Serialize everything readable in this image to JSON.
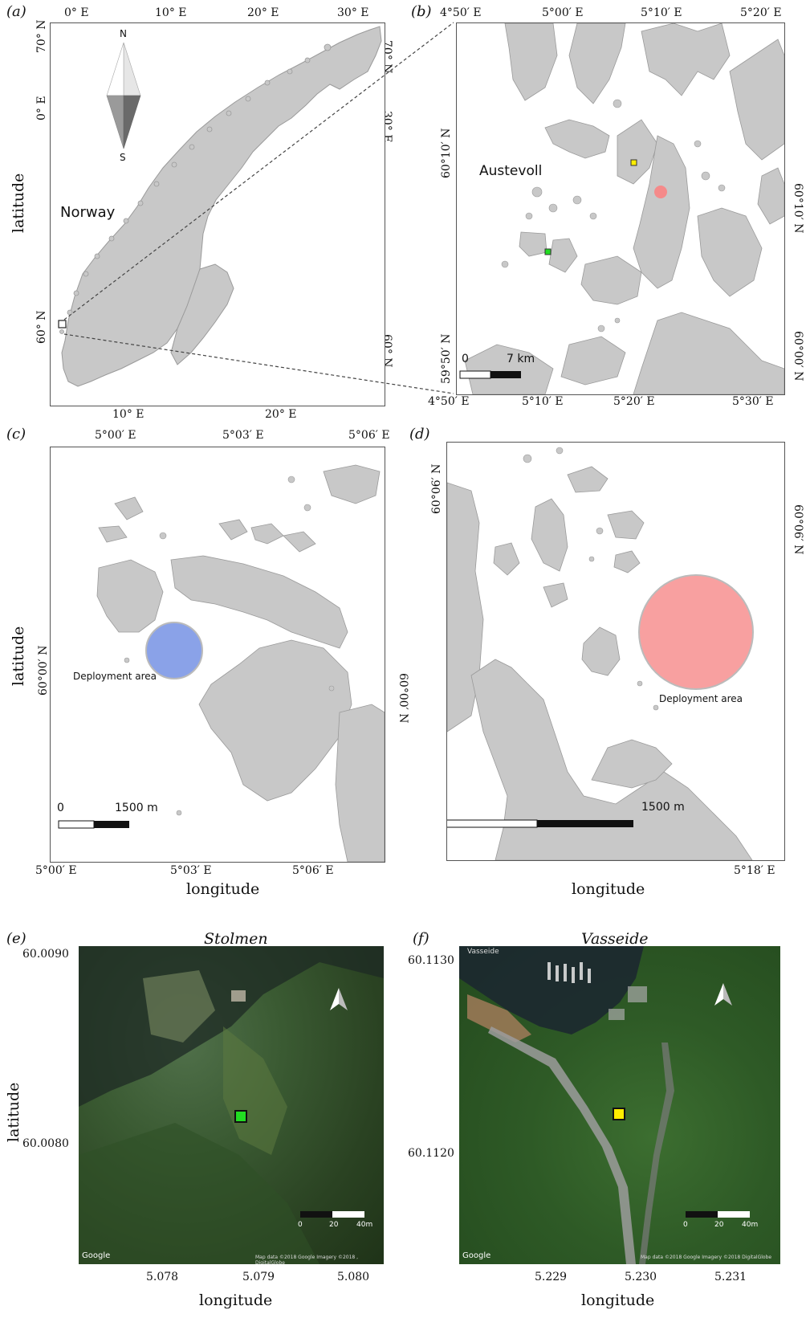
{
  "panels": {
    "a": {
      "letter": "(a)",
      "top_ticks": [
        "0° E",
        "10° E",
        "20° E",
        "30° E"
      ],
      "bottom_ticks": [
        "10° E",
        "20° E"
      ],
      "left_ticks": [
        "70° N",
        "0° E",
        "60° N"
      ],
      "right_ticks": [
        "70° N",
        "30° E",
        "60° N"
      ],
      "ylabel": "latitude",
      "country_label": "Norway",
      "compass_n": "N",
      "compass_s": "S"
    },
    "b": {
      "letter": "(b)",
      "top_ticks": [
        "4°50′ E",
        "5°00′ E",
        "5°10′ E",
        "5°20′ E"
      ],
      "bottom_ticks": [
        "4°50′ E",
        "5°10′ E",
        "5°20′ E",
        "5°30′ E"
      ],
      "left_ticks": [
        "60°10′ N",
        "59°50′ N"
      ],
      "right_ticks": [
        "60°10′ N",
        "60°00′ N"
      ],
      "place_label": "Austevoll",
      "scale_start": "0",
      "scale_end": "7 km"
    },
    "c": {
      "letter": "(c)",
      "top_ticks": [
        "5°00′ E",
        "5°03′ E",
        "5°06′ E"
      ],
      "bottom_ticks": [
        "5°00′ E",
        "5°03′ E",
        "5°06′ E"
      ],
      "left_ticks": [
        "60°00′ N"
      ],
      "right_ticks": [
        "60°00′ N"
      ],
      "ylabel": "latitude",
      "xlabel": "longitude",
      "area_label": "Deployment area",
      "scale_start": "0",
      "scale_end": "1500 m"
    },
    "d": {
      "letter": "(d)",
      "bottom_ticks": [
        "5°18′ E"
      ],
      "left_ticks": [
        "60°06′ N"
      ],
      "right_ticks": [
        "60°06′ N"
      ],
      "xlabel": "longitude",
      "area_label": "Deployment area",
      "scale_start": "0",
      "scale_end": "1500 m"
    },
    "e": {
      "letter": "(e)",
      "title": "Stolmen",
      "left_ticks": [
        "60.0090",
        "60.0080"
      ],
      "bottom_ticks": [
        "5.078",
        "5.079",
        "5.080"
      ],
      "ylabel": "latitude",
      "xlabel": "longitude",
      "attribution_logo": "Google",
      "attribution_text": "Map data ©2018 Google Imagery ©2018 , DigitalGlobe",
      "scale_labels": [
        "0",
        "20",
        "40m"
      ]
    },
    "f": {
      "letter": "(f)",
      "title": "Vasseide",
      "place_overlay": "Vasseide",
      "left_ticks": [
        "60.1130",
        "60.1120"
      ],
      "bottom_ticks": [
        "5.229",
        "5.230",
        "5.231"
      ],
      "xlabel": "longitude",
      "attribution_logo": "Google",
      "attribution_text": "Map data ©2018 Google Imagery ©2018 DigitalGlobe",
      "scale_labels": [
        "0",
        "20",
        "40m"
      ]
    }
  },
  "colors": {
    "land": "#c8c8c8",
    "coast": "#9a9a9a",
    "marker_green": "#22dd22",
    "marker_yellow": "#ffee00",
    "deploy_red": "#f58a8a",
    "deploy_blue": "#8aa2e8",
    "satellite": "#2f4a26"
  },
  "icons": [
    "compass-rose-icon",
    "north-arrow-icon"
  ]
}
